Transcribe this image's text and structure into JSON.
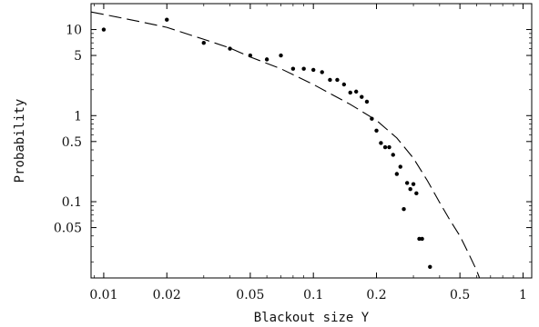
{
  "chart_data": {
    "type": "scatter",
    "xlabel": "Blackout size Y",
    "ylabel": "Probability",
    "x_scale": "log",
    "y_scale": "log",
    "xlim": [
      0.0087,
      1.1
    ],
    "ylim": [
      0.013,
      20
    ],
    "x_ticks": [
      {
        "value": 0.01,
        "label": "0.01"
      },
      {
        "value": 0.02,
        "label": "0.02"
      },
      {
        "value": 0.05,
        "label": "0.05"
      },
      {
        "value": 0.1,
        "label": "0.1"
      },
      {
        "value": 0.2,
        "label": "0.2"
      },
      {
        "value": 0.5,
        "label": "0.5"
      },
      {
        "value": 1,
        "label": "1"
      }
    ],
    "y_ticks": [
      {
        "value": 0.05,
        "label": "0.05"
      },
      {
        "value": 0.1,
        "label": "0.1"
      },
      {
        "value": 0.5,
        "label": "0.5"
      },
      {
        "value": 1,
        "label": "1"
      },
      {
        "value": 5,
        "label": "5"
      },
      {
        "value": 10,
        "label": "10"
      }
    ],
    "grid": false,
    "series": [
      {
        "style": "points",
        "points": [
          [
            0.01,
            10.0
          ],
          [
            0.02,
            13.0
          ],
          [
            0.03,
            7.0
          ],
          [
            0.04,
            6.0
          ],
          [
            0.05,
            5.0
          ],
          [
            0.06,
            4.5
          ],
          [
            0.07,
            5.0
          ],
          [
            0.08,
            3.5
          ],
          [
            0.09,
            3.5
          ],
          [
            0.1,
            3.4
          ],
          [
            0.11,
            3.2
          ],
          [
            0.12,
            2.6
          ],
          [
            0.13,
            2.6
          ],
          [
            0.14,
            2.3
          ],
          [
            0.15,
            1.85
          ],
          [
            0.16,
            1.9
          ],
          [
            0.17,
            1.65
          ],
          [
            0.18,
            1.45
          ],
          [
            0.19,
            0.92
          ],
          [
            0.2,
            0.67
          ],
          [
            0.21,
            0.48
          ],
          [
            0.22,
            0.43
          ],
          [
            0.23,
            0.43
          ],
          [
            0.24,
            0.35
          ],
          [
            0.25,
            0.21
          ],
          [
            0.26,
            0.255
          ],
          [
            0.27,
            0.082
          ],
          [
            0.28,
            0.165
          ],
          [
            0.29,
            0.14
          ],
          [
            0.3,
            0.16
          ],
          [
            0.31,
            0.125
          ],
          [
            0.32,
            0.037
          ],
          [
            0.33,
            0.037
          ],
          [
            0.36,
            0.0175
          ]
        ]
      },
      {
        "style": "dashed",
        "points": [
          [
            0.0087,
            16.0
          ],
          [
            0.01,
            15.0
          ],
          [
            0.015,
            12.3
          ],
          [
            0.02,
            10.6
          ],
          [
            0.03,
            7.7
          ],
          [
            0.04,
            6.1
          ],
          [
            0.05,
            4.8
          ],
          [
            0.07,
            3.5
          ],
          [
            0.1,
            2.3
          ],
          [
            0.15,
            1.35
          ],
          [
            0.2,
            0.88
          ],
          [
            0.25,
            0.55
          ],
          [
            0.3,
            0.32
          ],
          [
            0.35,
            0.175
          ],
          [
            0.4,
            0.098
          ],
          [
            0.45,
            0.06
          ],
          [
            0.5,
            0.04
          ],
          [
            0.55,
            0.025
          ],
          [
            0.6,
            0.016
          ],
          [
            0.62,
            0.013
          ]
        ]
      }
    ]
  }
}
